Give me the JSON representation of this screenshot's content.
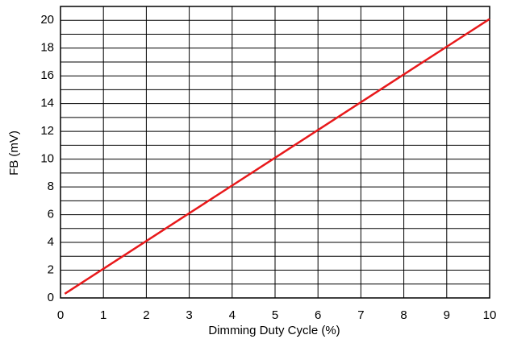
{
  "chart_data": {
    "type": "line",
    "xlabel": "Dimming Duty Cycle (%)",
    "ylabel": "FB (mV)",
    "x": [
      0.1,
      1,
      2,
      3,
      4,
      5,
      6,
      7,
      8,
      9,
      10
    ],
    "series": [
      {
        "color": "#e8191b",
        "values": [
          0.3,
          2.1,
          4.1,
          6.1,
          8.1,
          10.1,
          12.1,
          14.1,
          16.1,
          18.1,
          20.1
        ]
      }
    ],
    "xlim": [
      0,
      10
    ],
    "xticks": [
      0,
      1,
      2,
      3,
      4,
      5,
      6,
      7,
      8,
      9,
      10
    ],
    "ylim": [
      0,
      21
    ],
    "yticks": [
      0,
      2,
      4,
      6,
      8,
      10,
      12,
      14,
      16,
      18,
      20
    ],
    "yminor_ticks": [
      1,
      3,
      5,
      7,
      9,
      11,
      13,
      15,
      17,
      19
    ],
    "grid": true
  }
}
